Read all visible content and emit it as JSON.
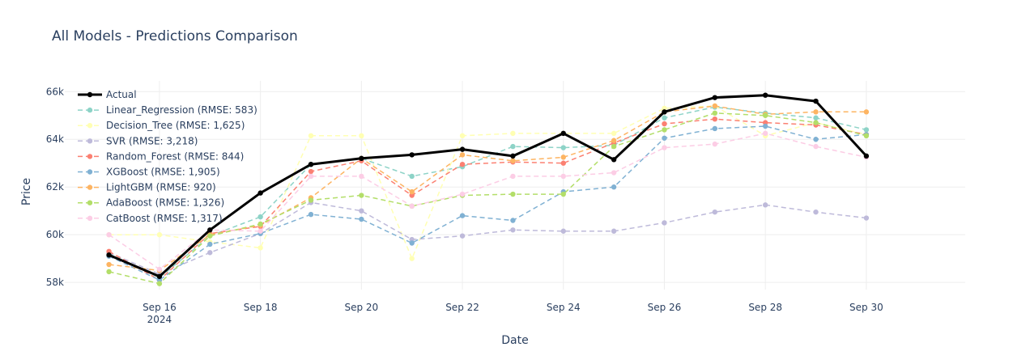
{
  "chart_data": {
    "type": "line",
    "title": "All Models - Predictions Comparison",
    "xlabel": "Date",
    "ylabel": "Price",
    "x": [
      "2024-09-15",
      "2024-09-16",
      "2024-09-17",
      "2024-09-18",
      "2024-09-19",
      "2024-09-20",
      "2024-09-21",
      "2024-09-22",
      "2024-09-23",
      "2024-09-24",
      "2024-09-25",
      "2024-09-26",
      "2024-09-27",
      "2024-09-28",
      "2024-09-29",
      "2024-09-30"
    ],
    "x_tick_labels": [
      {
        "date": "2024-09-16",
        "label": "Sep 16",
        "sub": "2024"
      },
      {
        "date": "2024-09-18",
        "label": "Sep 18",
        "sub": ""
      },
      {
        "date": "2024-09-20",
        "label": "Sep 20",
        "sub": ""
      },
      {
        "date": "2024-09-22",
        "label": "Sep 22",
        "sub": ""
      },
      {
        "date": "2024-09-24",
        "label": "Sep 24",
        "sub": ""
      },
      {
        "date": "2024-09-26",
        "label": "Sep 26",
        "sub": ""
      },
      {
        "date": "2024-09-28",
        "label": "Sep 28",
        "sub": ""
      },
      {
        "date": "2024-09-30",
        "label": "Sep 30",
        "sub": ""
      }
    ],
    "y_ticks": [
      {
        "value": 58000,
        "label": "58k"
      },
      {
        "value": 60000,
        "label": "60k"
      },
      {
        "value": 62000,
        "label": "62k"
      },
      {
        "value": 64000,
        "label": "64k"
      },
      {
        "value": 66000,
        "label": "66k"
      }
    ],
    "xlim": [
      "2024-09-14 03:00",
      "2024-10-01 23:00"
    ],
    "ylim": [
      57700,
      66450
    ],
    "grid": true,
    "legend_position": "top-left",
    "series": [
      {
        "name": "Actual",
        "color": "#000000",
        "dash": "solid",
        "width": 3,
        "values": [
          59150,
          58250,
          60200,
          61750,
          62950,
          63200,
          63350,
          63580,
          63300,
          64250,
          63150,
          65150,
          65750,
          65850,
          65600,
          63300
        ]
      },
      {
        "name": "Linear_Regression (RMSE: 583)",
        "color": "#8dd3c7",
        "dash": "dashed",
        "width": 1.5,
        "values": [
          59200,
          58200,
          59950,
          60750,
          62950,
          63200,
          62450,
          62850,
          63700,
          63650,
          63750,
          64900,
          65350,
          65100,
          64900,
          64400
        ]
      },
      {
        "name": "Decision_Tree (RMSE: 1,625)",
        "color": "#ffffb3",
        "dash": "dashed",
        "width": 1.5,
        "values": [
          60000,
          60000,
          59700,
          59450,
          64150,
          64150,
          59000,
          64150,
          64250,
          64250,
          64250,
          65300,
          65400,
          64150,
          64700,
          64200
        ]
      },
      {
        "name": "SVR (RMSE: 3,218)",
        "color": "#bebada",
        "dash": "dashed",
        "width": 1.5,
        "values": [
          59250,
          58350,
          59250,
          60050,
          61350,
          61000,
          59800,
          59950,
          60200,
          60150,
          60150,
          60500,
          60950,
          61250,
          60950,
          60700
        ]
      },
      {
        "name": "Random_Forest (RMSE: 844)",
        "color": "#fb8072",
        "dash": "dashed",
        "width": 1.5,
        "values": [
          59300,
          58100,
          60050,
          60350,
          62650,
          63100,
          61650,
          62950,
          63050,
          63000,
          63850,
          64650,
          64850,
          64700,
          64600,
          64200
        ]
      },
      {
        "name": "XGBoost (RMSE: 1,905)",
        "color": "#80b1d3",
        "dash": "dashed",
        "width": 1.5,
        "values": [
          59100,
          58100,
          59600,
          60050,
          60850,
          60650,
          59650,
          60800,
          60600,
          61800,
          62000,
          64050,
          64450,
          64550,
          64000,
          64200
        ]
      },
      {
        "name": "LightGBM (RMSE: 920)",
        "color": "#fdb462",
        "dash": "dashed",
        "width": 1.5,
        "values": [
          58750,
          58500,
          60000,
          60400,
          61550,
          63200,
          61800,
          63350,
          63100,
          63250,
          63950,
          65150,
          65400,
          65050,
          65150,
          65150
        ]
      },
      {
        "name": "AdaBoost (RMSE: 1,326)",
        "color": "#b3de69",
        "dash": "dashed",
        "width": 1.5,
        "values": [
          58450,
          57950,
          59950,
          60450,
          61450,
          61650,
          61200,
          61650,
          61700,
          61700,
          63700,
          64400,
          65100,
          65000,
          64700,
          64150
        ]
      },
      {
        "name": "CatBoost (RMSE: 1,317)",
        "color": "#fccde5",
        "dash": "dashed",
        "width": 1.5,
        "values": [
          60000,
          58550,
          60200,
          60150,
          62450,
          62450,
          61200,
          61700,
          62450,
          62450,
          62600,
          63650,
          63800,
          64250,
          63700,
          63250
        ]
      }
    ]
  }
}
